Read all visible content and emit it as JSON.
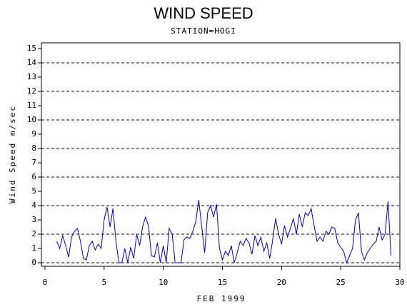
{
  "chart_data": {
    "type": "line",
    "title": "WIND SPEED",
    "subtitle": "STATION=HOGI",
    "xlabel": "FEB 1999",
    "ylabel": "Wind Speed m/sec",
    "x": [
      1,
      1.25,
      1.5,
      1.75,
      2,
      2.25,
      2.5,
      2.75,
      3,
      3.25,
      3.5,
      3.75,
      4,
      4.25,
      4.5,
      4.75,
      5,
      5.25,
      5.5,
      5.75,
      6,
      6.25,
      6.5,
      6.75,
      7,
      7.25,
      7.5,
      7.75,
      8,
      8.25,
      8.5,
      8.75,
      9,
      9.25,
      9.5,
      9.75,
      10,
      10.25,
      10.5,
      10.75,
      11,
      11.25,
      11.5,
      11.75,
      12,
      12.25,
      12.5,
      12.75,
      13,
      13.25,
      13.5,
      13.75,
      14,
      14.25,
      14.5,
      14.75,
      15,
      15.25,
      15.5,
      15.75,
      16,
      16.25,
      16.5,
      16.75,
      17,
      17.25,
      17.5,
      17.75,
      18,
      18.25,
      18.5,
      18.75,
      19,
      19.25,
      19.5,
      19.75,
      20,
      20.25,
      20.5,
      20.75,
      21,
      21.25,
      21.5,
      21.75,
      22,
      22.25,
      22.5,
      22.75,
      23,
      23.25,
      23.5,
      23.75,
      24,
      24.25,
      24.5,
      24.75,
      25,
      25.25,
      25.5,
      25.75,
      26,
      26.25,
      26.5,
      26.75,
      27,
      27.25,
      27.5,
      27.75,
      28,
      28.25,
      28.5,
      28.75,
      29,
      29.25
    ],
    "series": [
      {
        "name": "Wind Speed",
        "color": "#0000cc",
        "values": [
          1.5,
          1.0,
          1.9,
          1.2,
          0.4,
          1.8,
          2.2,
          2.4,
          1.5,
          0.3,
          0.2,
          1.2,
          1.5,
          0.9,
          1.3,
          1.0,
          3.0,
          3.9,
          2.5,
          3.8,
          1.5,
          0.0,
          0.0,
          1.0,
          0.0,
          1.1,
          0.3,
          2.0,
          1.2,
          2.5,
          3.2,
          2.6,
          0.5,
          0.4,
          1.4,
          0.0,
          1.2,
          0.0,
          2.4,
          2.0,
          0.0,
          0.0,
          0.0,
          1.6,
          1.8,
          1.7,
          2.2,
          2.9,
          4.4,
          2.5,
          0.7,
          3.5,
          4.0,
          3.2,
          4.1,
          1.0,
          0.2,
          0.8,
          0.5,
          1.2,
          0.0,
          0.7,
          1.5,
          1.2,
          1.7,
          1.4,
          0.6,
          1.9,
          1.2,
          1.8,
          0.8,
          1.4,
          0.3,
          1.6,
          3.1,
          2.0,
          1.3,
          2.6,
          1.8,
          2.4,
          3.1,
          2.0,
          3.4,
          2.5,
          3.5,
          3.3,
          3.8,
          2.6,
          1.5,
          1.8,
          1.5,
          2.2,
          2.0,
          2.5,
          2.4,
          1.4,
          1.1,
          0.8,
          0.0,
          0.5,
          1.0,
          3.0,
          3.5,
          0.8,
          0.2,
          0.7,
          1.0,
          1.3,
          1.5,
          2.5,
          1.6,
          2.0,
          4.3,
          0.5
        ]
      }
    ],
    "xlim": [
      -0.3,
      30
    ],
    "xticks": [
      0,
      5,
      10,
      15,
      20,
      25,
      30
    ],
    "ylim": [
      -0.25,
      15.4
    ],
    "yticks": [
      0,
      1,
      2,
      3,
      4,
      5,
      6,
      7,
      8,
      9,
      10,
      11,
      12,
      13,
      14,
      15
    ],
    "grid_lines": [
      0,
      2,
      4,
      6,
      8,
      10,
      12,
      14
    ]
  }
}
